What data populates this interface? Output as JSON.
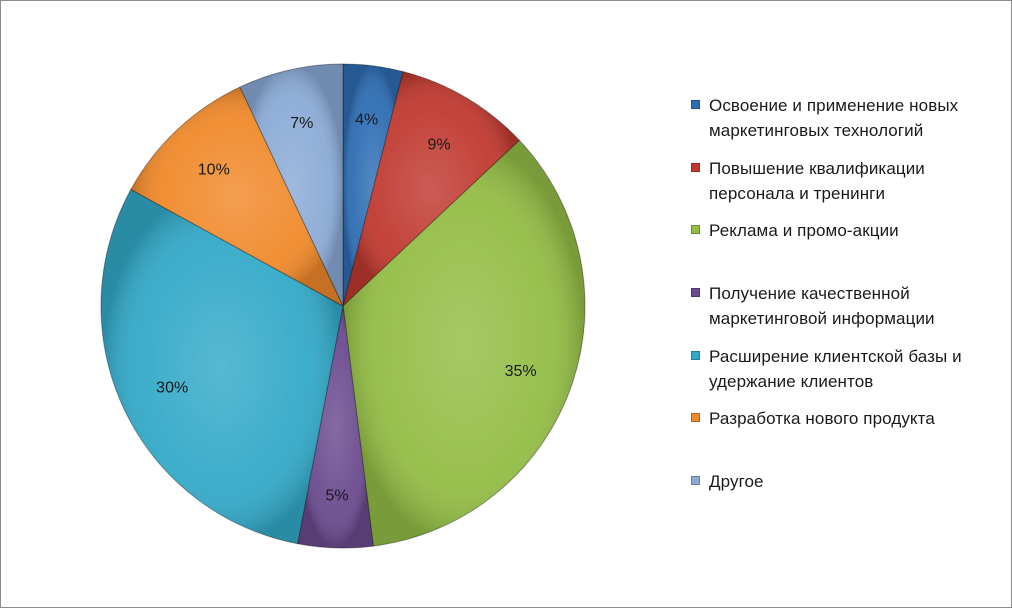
{
  "chart_data": {
    "type": "pie",
    "categories": [
      "Освоение и применение  новых маркетинговых технологий",
      "Повышение квалификации персонала и тренинги",
      "Реклама и промо-акции",
      "Получение качественной маркетинговой информации",
      "Расширение клиентской базы и удержание клиентов",
      "Разработка нового продукта",
      "Другое"
    ],
    "values": [
      4,
      9,
      35,
      5,
      30,
      10,
      7
    ],
    "labels": [
      "4%",
      "9%",
      "35%",
      "5%",
      "30%",
      "10%",
      "7%"
    ],
    "colors": [
      "#2e6db4",
      "#c0392f",
      "#93bd45",
      "#6b4a8f",
      "#32a9c8",
      "#f0892a",
      "#8aaad6"
    ],
    "legend_position": "right"
  },
  "legend": {
    "items": [
      {
        "label": "Освоение и применение  новых маркетинговых технологий",
        "color": "#2e6db4"
      },
      {
        "label": "Повышение квалификации персонала и тренинги",
        "color": "#c0392f"
      },
      {
        "label": "Реклама и промо-акции",
        "color": "#93bd45"
      },
      {
        "label": "Получение качественной маркетинговой информации",
        "color": "#6b4a8f"
      },
      {
        "label": "Расширение клиентской базы и удержание клиентов",
        "color": "#32a9c8"
      },
      {
        "label": "Разработка нового продукта",
        "color": "#f0892a"
      },
      {
        "label": "Другое",
        "color": "#8aaad6"
      }
    ]
  }
}
